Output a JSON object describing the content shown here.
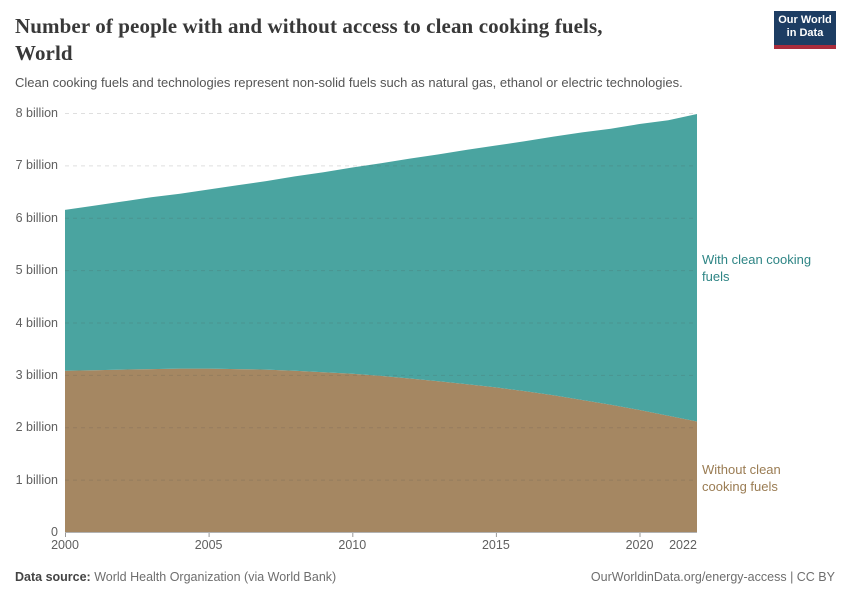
{
  "header": {
    "title_line1": "Number of people with and without access to clean cooking fuels,",
    "title_line2": "World",
    "subtitle": "Clean cooking fuels and technologies represent non-solid fuels such as natural gas, ethanol or electric technologies.",
    "logo": {
      "line1": "Our World",
      "line2": "in Data",
      "bg_color": "#1d3d63",
      "bar_color": "#a92c3c"
    }
  },
  "chart_data": {
    "type": "area",
    "stacked": true,
    "title": "Number of people with and without access to clean cooking fuels, World",
    "x": [
      2000,
      2001,
      2002,
      2003,
      2004,
      2005,
      2006,
      2007,
      2008,
      2009,
      2010,
      2011,
      2012,
      2013,
      2014,
      2015,
      2016,
      2017,
      2018,
      2019,
      2020,
      2021,
      2022
    ],
    "series": [
      {
        "name": "Without clean cooking fuels",
        "fill": "#a58762",
        "label_color": "#9a7c53",
        "values": [
          3.08,
          3.09,
          3.1,
          3.11,
          3.12,
          3.12,
          3.11,
          3.1,
          3.08,
          3.05,
          3.02,
          2.98,
          2.93,
          2.88,
          2.82,
          2.76,
          2.69,
          2.61,
          2.52,
          2.43,
          2.33,
          2.22,
          2.11
        ]
      },
      {
        "name": "With clean cooking fuels",
        "fill": "#4aa4a0",
        "label_color": "#2e8585",
        "values": [
          3.07,
          3.14,
          3.21,
          3.28,
          3.34,
          3.42,
          3.51,
          3.6,
          3.71,
          3.82,
          3.94,
          4.06,
          4.2,
          4.33,
          4.48,
          4.62,
          4.77,
          4.94,
          5.11,
          5.27,
          5.46,
          5.64,
          5.87
        ]
      }
    ],
    "ylim": [
      0,
      8
    ],
    "yticks": [
      {
        "value": 0,
        "label": "0"
      },
      {
        "value": 1,
        "label": "1 billion"
      },
      {
        "value": 2,
        "label": "2 billion"
      },
      {
        "value": 3,
        "label": "3 billion"
      },
      {
        "value": 4,
        "label": "4 billion"
      },
      {
        "value": 5,
        "label": "5 billion"
      },
      {
        "value": 6,
        "label": "6 billion"
      },
      {
        "value": 7,
        "label": "7 billion"
      },
      {
        "value": 8,
        "label": "8 billion"
      }
    ],
    "xticks": [
      2000,
      2005,
      2010,
      2015,
      2020,
      2022
    ],
    "grid": "dashed",
    "legend_position": "right-annotations"
  },
  "annotations": [
    {
      "series": "With clean cooking fuels",
      "lines": [
        "With clean cooking",
        "fuels"
      ]
    },
    {
      "series": "Without clean cooking fuels",
      "lines": [
        "Without clean",
        "cooking fuels"
      ]
    }
  ],
  "footer": {
    "datasource_label": "Data source:",
    "datasource_text": " World Health Organization (via World Bank)",
    "link": "OurWorldinData.org/energy-access | CC BY"
  }
}
